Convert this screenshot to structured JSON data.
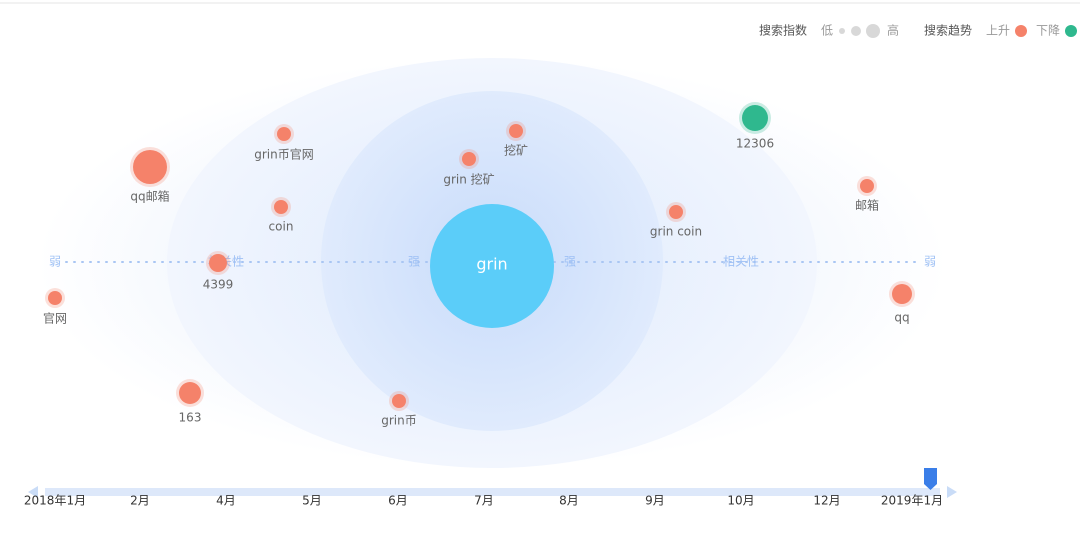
{
  "legend": {
    "index_title": "搜索指数",
    "low": "低",
    "high": "高",
    "trend_title": "搜索趋势",
    "rise": "上升",
    "fall": "下降"
  },
  "center": "grin",
  "axis": {
    "left_weak": "弱",
    "left_label": "相关性",
    "left_strong": "强",
    "right_strong": "强",
    "right_label": "相关性",
    "right_weak": "弱"
  },
  "nodes": [
    {
      "label": "qq邮箱"
    },
    {
      "label": "grin币官网"
    },
    {
      "label": "coin"
    },
    {
      "label": "4399"
    },
    {
      "label": "官网"
    },
    {
      "label": "163"
    },
    {
      "label": "grin币"
    },
    {
      "label": "grin 挖矿"
    },
    {
      "label": "挖矿"
    },
    {
      "label": "grin coin"
    },
    {
      "label": "12306"
    },
    {
      "label": "邮箱"
    },
    {
      "label": "qq"
    }
  ],
  "timeline": [
    "2018年1月",
    "2月",
    "4月",
    "5月",
    "6月",
    "7月",
    "8月",
    "9月",
    "10月",
    "12月",
    "2019年1月"
  ]
}
